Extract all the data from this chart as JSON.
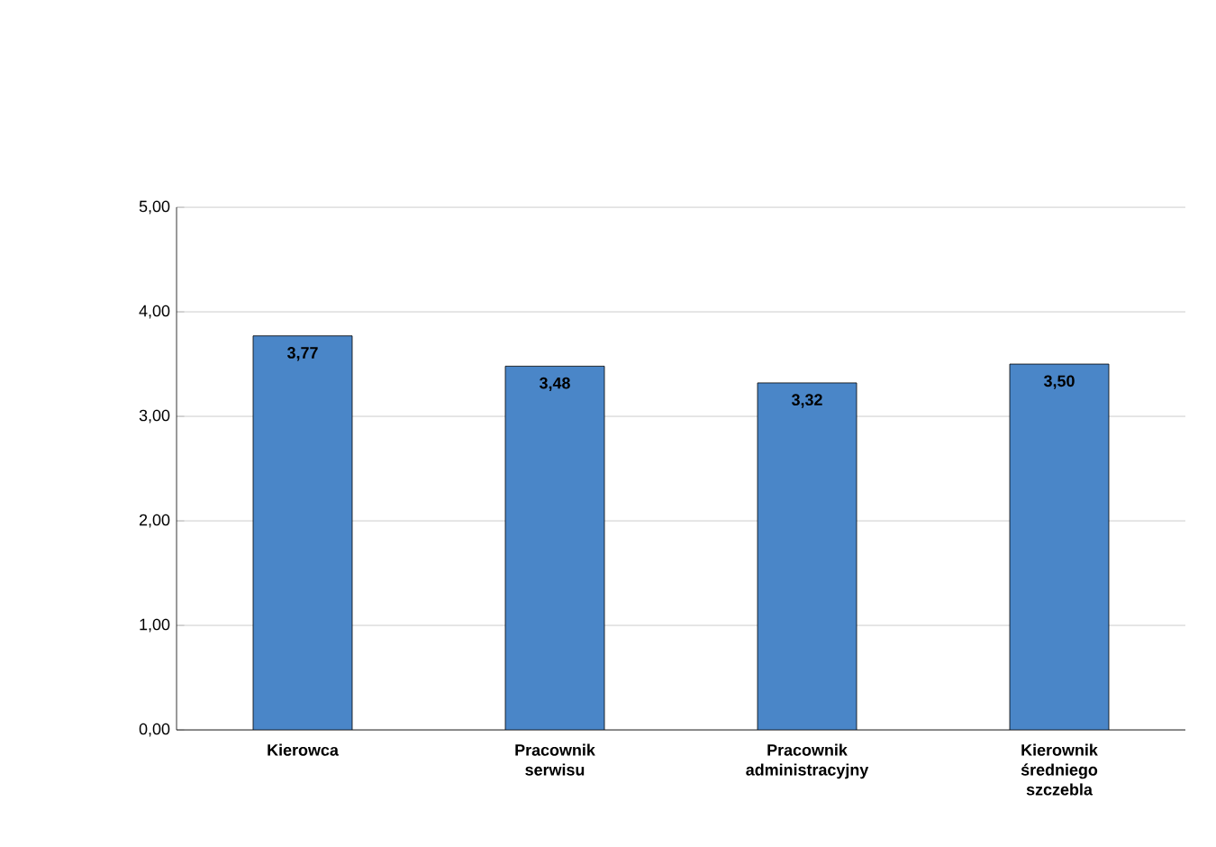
{
  "chart_data": {
    "type": "bar",
    "categories": [
      "Kierowca",
      "Pracownik serwisu",
      "Pracownik administracyjny",
      "Kierownik średniego szczebla"
    ],
    "values": [
      3.77,
      3.48,
      3.32,
      3.5
    ],
    "value_labels": [
      "3,77",
      "3,48",
      "3,32",
      "3,50"
    ],
    "color": "#4a86c8",
    "ylim": [
      0,
      5
    ],
    "yticks": [
      {
        "value": 0,
        "label": "0,00"
      },
      {
        "value": 1,
        "label": "1,00"
      },
      {
        "value": 2,
        "label": "2,00"
      },
      {
        "value": 3,
        "label": "3,00"
      },
      {
        "value": 4,
        "label": "4,00"
      },
      {
        "value": 5,
        "label": "5,00"
      }
    ],
    "grid": "y"
  }
}
